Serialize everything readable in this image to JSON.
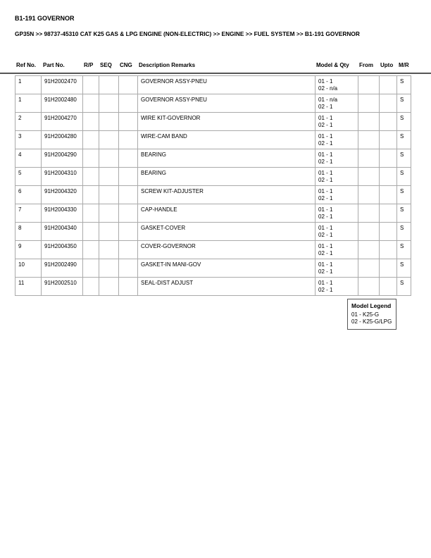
{
  "title": "B1-191 GOVERNOR",
  "breadcrumb": "GP35N >> 98737-45310 CAT K25 GAS & LPG ENGINE (NON-ELECTRIC) >> ENGINE >> FUEL SYSTEM >> B1-191 GOVERNOR",
  "columns": [
    "Ref No.",
    "Part No.",
    "R/P",
    "SEQ",
    "CNG",
    "Description Remarks",
    "Model & Qty",
    "From",
    "Upto",
    "M/R"
  ],
  "rows": [
    {
      "ref": "1",
      "part": "91H2002470",
      "desc": "GOVERNOR ASSY-PNEU",
      "q1": "01 - 1",
      "q2": "02 - n/a",
      "mr": "S"
    },
    {
      "ref": "1",
      "part": "91H2002480",
      "desc": "GOVERNOR ASSY-PNEU",
      "q1": "01 - n/a",
      "q2": "02 - 1",
      "mr": "S"
    },
    {
      "ref": "2",
      "part": "91H2004270",
      "desc": "WIRE KIT-GOVERNOR",
      "q1": "01 - 1",
      "q2": "02 - 1",
      "mr": "S"
    },
    {
      "ref": "3",
      "part": "91H2004280",
      "desc": "WIRE-CAM BAND",
      "q1": "01 - 1",
      "q2": "02 - 1",
      "mr": "S"
    },
    {
      "ref": "4",
      "part": "91H2004290",
      "desc": "BEARING",
      "q1": "01 - 1",
      "q2": "02 - 1",
      "mr": "S"
    },
    {
      "ref": "5",
      "part": "91H2004310",
      "desc": "BEARING",
      "q1": "01 - 1",
      "q2": "02 - 1",
      "mr": "S"
    },
    {
      "ref": "6",
      "part": "91H2004320",
      "desc": "SCREW KIT-ADJUSTER",
      "q1": "01 - 1",
      "q2": "02 - 1",
      "mr": "S"
    },
    {
      "ref": "7",
      "part": "91H2004330",
      "desc": "CAP-HANDLE",
      "q1": "01 - 1",
      "q2": "02 - 1",
      "mr": "S"
    },
    {
      "ref": "8",
      "part": "91H2004340",
      "desc": "GASKET-COVER",
      "q1": "01 - 1",
      "q2": "02 - 1",
      "mr": "S"
    },
    {
      "ref": "9",
      "part": "91H2004350",
      "desc": "COVER-GOVERNOR",
      "q1": "01 - 1",
      "q2": "02 - 1",
      "mr": "S"
    },
    {
      "ref": "10",
      "part": "91H2002490",
      "desc": "GASKET-IN MANI-GOV",
      "q1": "01 - 1",
      "q2": "02 - 1",
      "mr": "S"
    },
    {
      "ref": "11",
      "part": "91H2002510",
      "desc": "SEAL-DIST ADJUST",
      "q1": "01 - 1",
      "q2": "02 - 1",
      "mr": "S"
    }
  ],
  "legend": {
    "title": "Model Legend",
    "items": [
      "01 - K25-G",
      "02 - K25-G/LPG"
    ]
  }
}
